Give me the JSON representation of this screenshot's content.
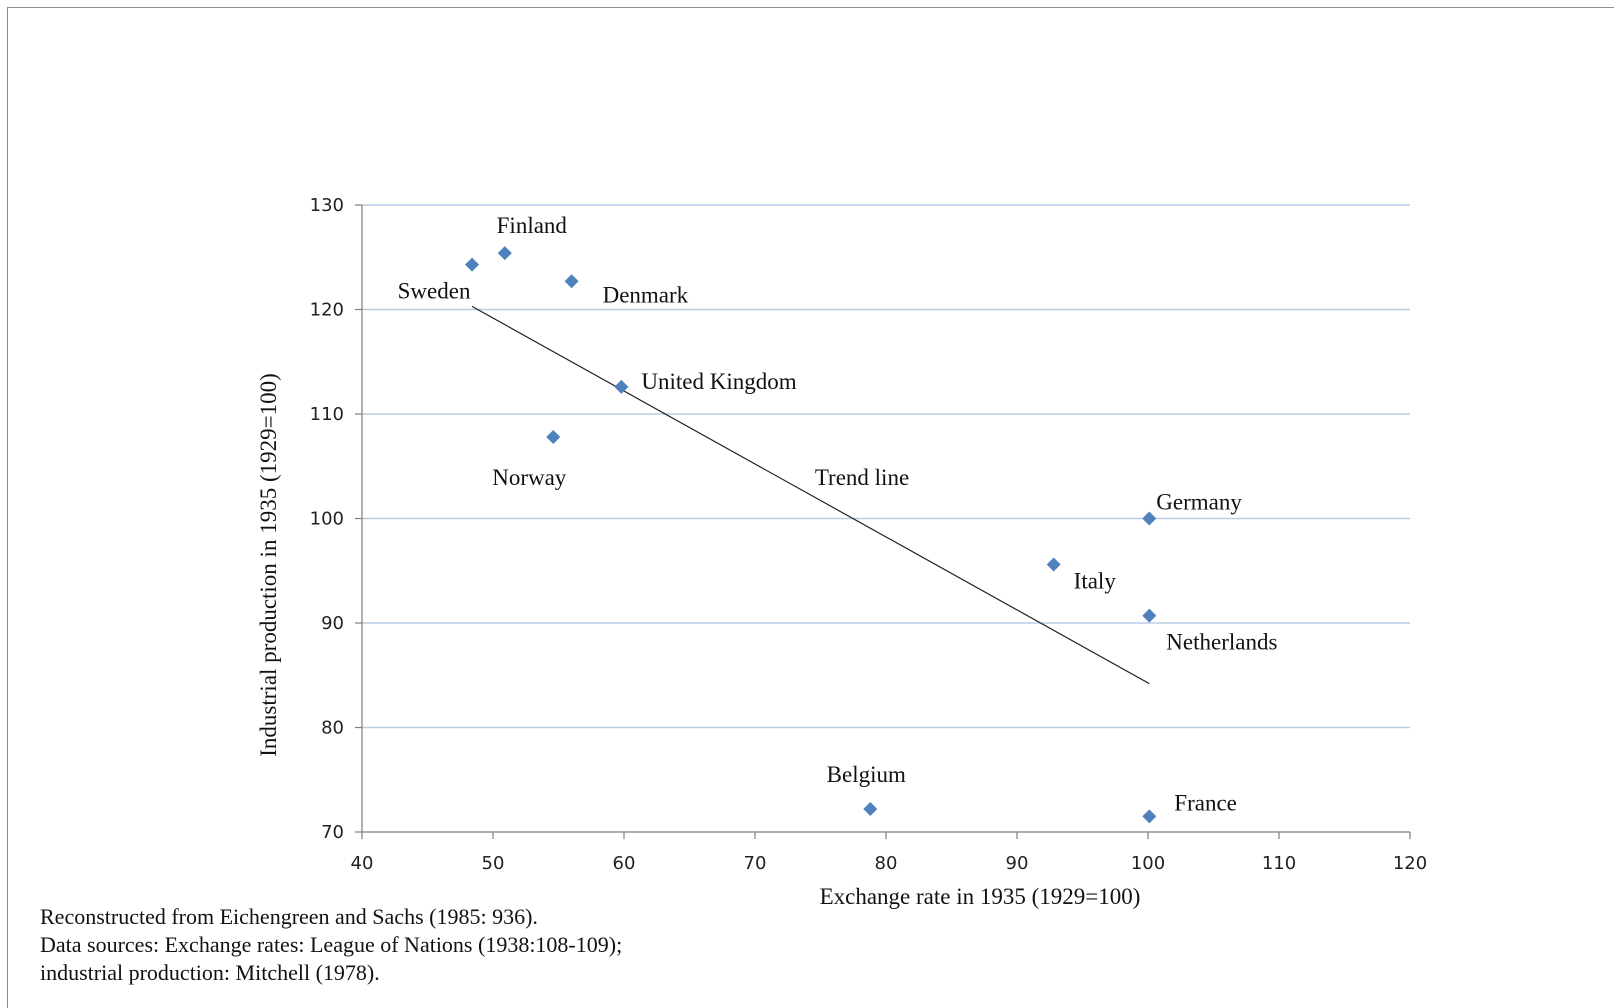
{
  "chart_data": {
    "type": "scatter",
    "xlabel": "Exchange rate in 1935 (1929=100)",
    "ylabel": "Industrial production in 1935  (1929=100)",
    "xlim": [
      40,
      120
    ],
    "ylim": [
      70,
      130
    ],
    "xticks": [
      40,
      50,
      60,
      70,
      80,
      90,
      100,
      110,
      120
    ],
    "yticks": [
      70,
      80,
      90,
      100,
      110,
      120,
      130
    ],
    "grid": "horizontal",
    "marker_color": "#4F81BD",
    "points": [
      {
        "label": "Sweden",
        "x": 48.4,
        "y": 124.3
      },
      {
        "label": "Finland",
        "x": 50.9,
        "y": 125.4
      },
      {
        "label": "Denmark",
        "x": 56.0,
        "y": 122.7
      },
      {
        "label": "United Kingdom",
        "x": 59.8,
        "y": 112.6
      },
      {
        "label": "Norway",
        "x": 54.6,
        "y": 107.8
      },
      {
        "label": "Germany",
        "x": 100.1,
        "y": 100.0
      },
      {
        "label": "Italy",
        "x": 92.8,
        "y": 95.6
      },
      {
        "label": "Netherlands",
        "x": 100.1,
        "y": 90.7
      },
      {
        "label": "Belgium",
        "x": 78.8,
        "y": 72.2
      },
      {
        "label": "France",
        "x": 100.1,
        "y": 71.5
      }
    ],
    "trend_line": {
      "label": "Trend line",
      "x": [
        48.4,
        100.1
      ],
      "y": [
        120.3,
        84.2
      ]
    }
  },
  "notes": [
    "Reconstructed from Eichengreen and Sachs (1985: 936).",
    "Data sources: Exchange rates: League of Nations (1938:108-109);",
    "industrial production: Mitchell (1978)."
  ]
}
